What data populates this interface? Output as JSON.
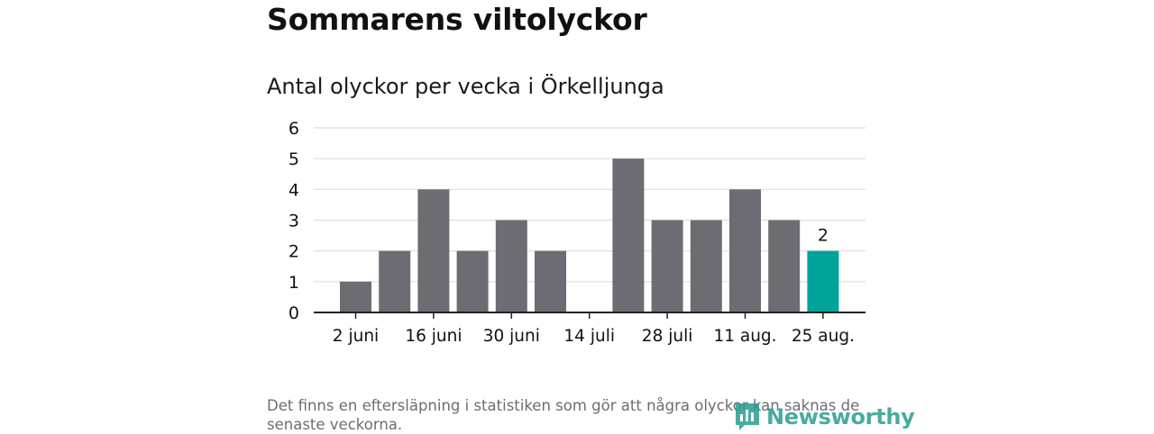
{
  "header": {
    "title": "Sommarens viltolyckor",
    "subtitle": "Antal olyckor per vecka i Örkelljunga"
  },
  "footer": {
    "note": "Det finns en eftersläpning i statistiken som gör att några olyckor kan saknas de senaste veckorna.",
    "logo_text": "Newsworthy"
  },
  "colors": {
    "bar": "#6d6c72",
    "highlight": "#00a398",
    "grid": "#dddddd",
    "axis": "#222222",
    "brand": "#2a9d8f"
  },
  "chart_data": {
    "type": "bar",
    "title": "Antal olyckor per vecka i Örkelljunga",
    "xlabel": "",
    "ylabel": "",
    "ylim": [
      0,
      6
    ],
    "yticks": [
      0,
      1,
      2,
      3,
      4,
      5,
      6
    ],
    "xtick_labels": [
      "2 juni",
      "16 juni",
      "30 juni",
      "14 juli",
      "28 juli",
      "11 aug.",
      "25 aug."
    ],
    "values": [
      1,
      2,
      4,
      2,
      3,
      2,
      0,
      5,
      3,
      3,
      4,
      3,
      2
    ],
    "highlight_index": 12,
    "highlight_label": "2",
    "grid": true
  }
}
